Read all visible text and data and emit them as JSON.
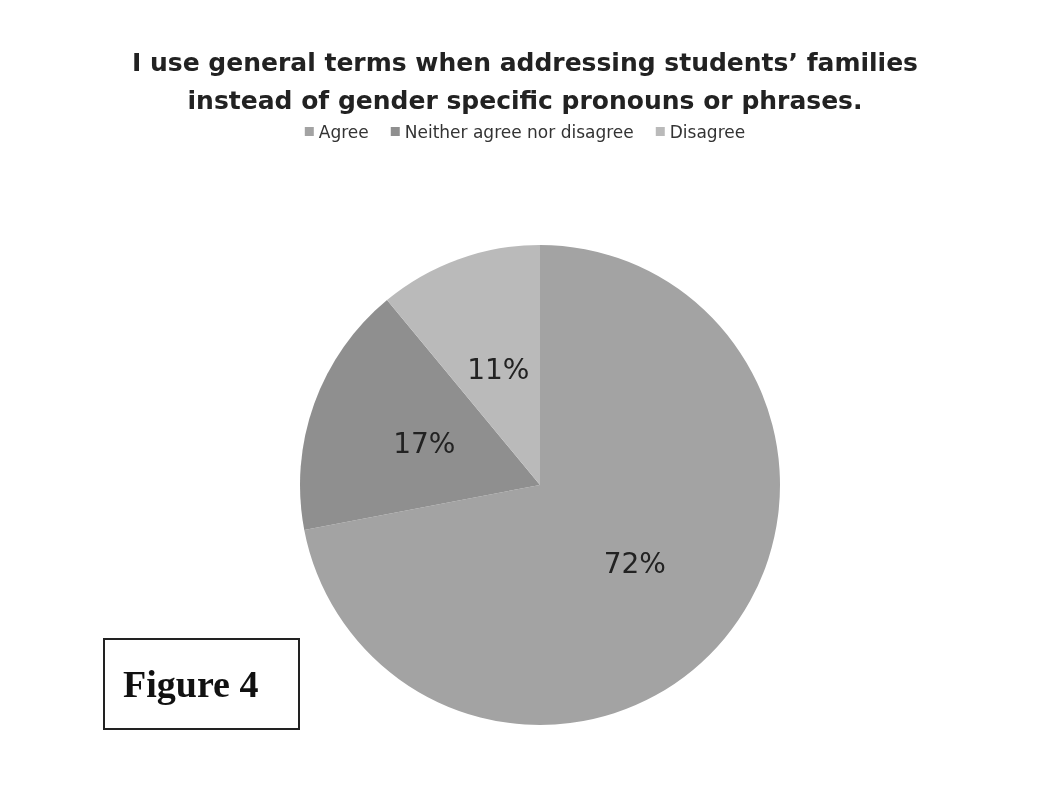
{
  "chart_data": {
    "type": "pie",
    "title": "I use general terms when addressing students’ families\ninstead of gender specific pronouns or phrases.",
    "categories": [
      "Agree",
      "Neither agree nor disagree",
      "Disagree"
    ],
    "values": [
      72,
      17,
      11
    ],
    "value_labels": [
      "72%",
      "17%",
      "11%"
    ],
    "colors": [
      "#a3a3a3",
      "#8f8f8f",
      "#bababa"
    ],
    "legend": "top",
    "annotations": [
      "Figure 4"
    ]
  }
}
